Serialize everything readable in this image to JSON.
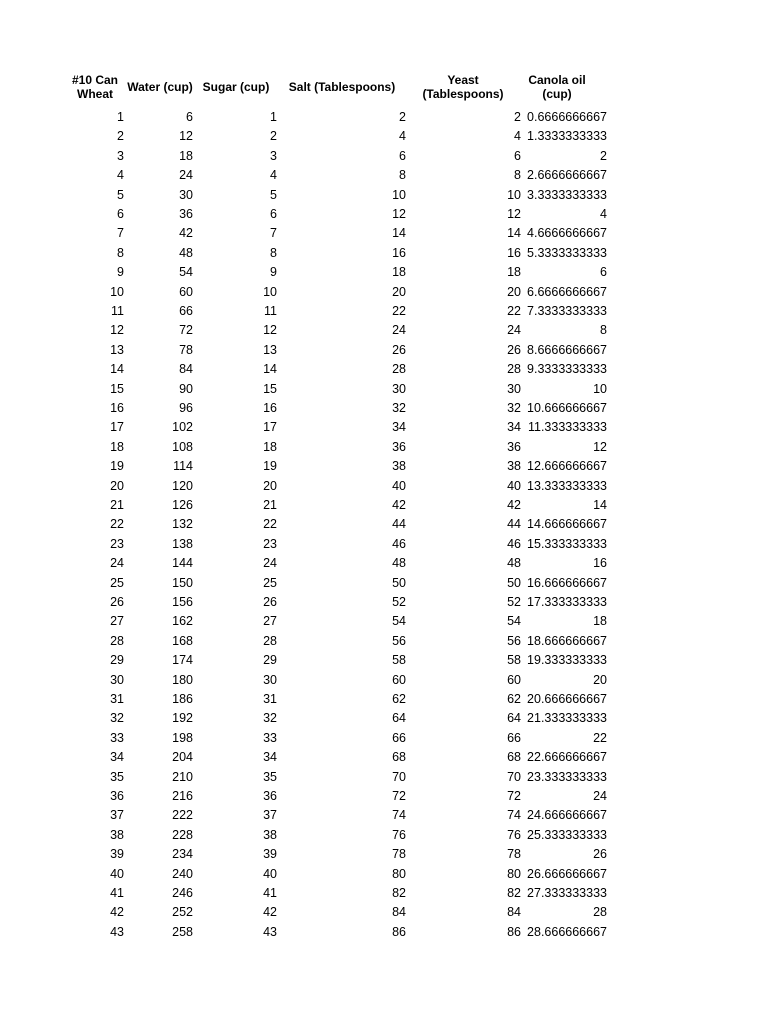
{
  "headers": [
    "#10 Can\nWheat",
    "Water (cup)",
    "Sugar (cup)",
    "Salt (Tablespoons)",
    "Yeast\n(Tablespoons)",
    "Canola oil\n(cup)"
  ],
  "rows": [
    [
      "1",
      "6",
      "1",
      "2",
      "2",
      "0.6666666667"
    ],
    [
      "2",
      "12",
      "2",
      "4",
      "4",
      "1.3333333333"
    ],
    [
      "3",
      "18",
      "3",
      "6",
      "6",
      "2"
    ],
    [
      "4",
      "24",
      "4",
      "8",
      "8",
      "2.6666666667"
    ],
    [
      "5",
      "30",
      "5",
      "10",
      "10",
      "3.3333333333"
    ],
    [
      "6",
      "36",
      "6",
      "12",
      "12",
      "4"
    ],
    [
      "7",
      "42",
      "7",
      "14",
      "14",
      "4.6666666667"
    ],
    [
      "8",
      "48",
      "8",
      "16",
      "16",
      "5.3333333333"
    ],
    [
      "9",
      "54",
      "9",
      "18",
      "18",
      "6"
    ],
    [
      "10",
      "60",
      "10",
      "20",
      "20",
      "6.6666666667"
    ],
    [
      "11",
      "66",
      "11",
      "22",
      "22",
      "7.3333333333"
    ],
    [
      "12",
      "72",
      "12",
      "24",
      "24",
      "8"
    ],
    [
      "13",
      "78",
      "13",
      "26",
      "26",
      "8.6666666667"
    ],
    [
      "14",
      "84",
      "14",
      "28",
      "28",
      "9.3333333333"
    ],
    [
      "15",
      "90",
      "15",
      "30",
      "30",
      "10"
    ],
    [
      "16",
      "96",
      "16",
      "32",
      "32",
      "10.666666667"
    ],
    [
      "17",
      "102",
      "17",
      "34",
      "34",
      "11.333333333"
    ],
    [
      "18",
      "108",
      "18",
      "36",
      "36",
      "12"
    ],
    [
      "19",
      "114",
      "19",
      "38",
      "38",
      "12.666666667"
    ],
    [
      "20",
      "120",
      "20",
      "40",
      "40",
      "13.333333333"
    ],
    [
      "21",
      "126",
      "21",
      "42",
      "42",
      "14"
    ],
    [
      "22",
      "132",
      "22",
      "44",
      "44",
      "14.666666667"
    ],
    [
      "23",
      "138",
      "23",
      "46",
      "46",
      "15.333333333"
    ],
    [
      "24",
      "144",
      "24",
      "48",
      "48",
      "16"
    ],
    [
      "25",
      "150",
      "25",
      "50",
      "50",
      "16.666666667"
    ],
    [
      "26",
      "156",
      "26",
      "52",
      "52",
      "17.333333333"
    ],
    [
      "27",
      "162",
      "27",
      "54",
      "54",
      "18"
    ],
    [
      "28",
      "168",
      "28",
      "56",
      "56",
      "18.666666667"
    ],
    [
      "29",
      "174",
      "29",
      "58",
      "58",
      "19.333333333"
    ],
    [
      "30",
      "180",
      "30",
      "60",
      "60",
      "20"
    ],
    [
      "31",
      "186",
      "31",
      "62",
      "62",
      "20.666666667"
    ],
    [
      "32",
      "192",
      "32",
      "64",
      "64",
      "21.333333333"
    ],
    [
      "33",
      "198",
      "33",
      "66",
      "66",
      "22"
    ],
    [
      "34",
      "204",
      "34",
      "68",
      "68",
      "22.666666667"
    ],
    [
      "35",
      "210",
      "35",
      "70",
      "70",
      "23.333333333"
    ],
    [
      "36",
      "216",
      "36",
      "72",
      "72",
      "24"
    ],
    [
      "37",
      "222",
      "37",
      "74",
      "74",
      "24.666666667"
    ],
    [
      "38",
      "228",
      "38",
      "76",
      "76",
      "25.333333333"
    ],
    [
      "39",
      "234",
      "39",
      "78",
      "78",
      "26"
    ],
    [
      "40",
      "240",
      "40",
      "80",
      "80",
      "26.666666667"
    ],
    [
      "41",
      "246",
      "41",
      "82",
      "82",
      "27.333333333"
    ],
    [
      "42",
      "252",
      "42",
      "84",
      "84",
      "28"
    ],
    [
      "43",
      "258",
      "43",
      "86",
      "86",
      "28.666666667"
    ]
  ]
}
